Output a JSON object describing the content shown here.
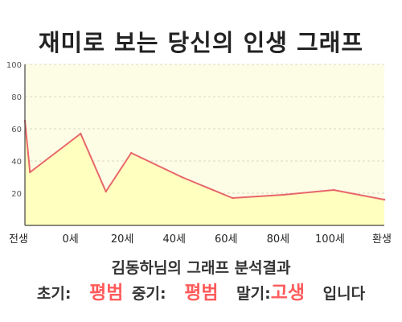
{
  "title": "재미로 보는 당신의 인생 그래프",
  "subtitle": "김동하님의 그래프 분석결과",
  "result": {
    "early_label": "초기:",
    "early_value": "평범",
    "middle_label": "중기:",
    "middle_value": "평범",
    "late_label": "말기:",
    "late_value": "고생",
    "ending": "입니다"
  },
  "colors": {
    "line": "#e8666a",
    "fill": "#ffffbf",
    "plot_bg": "#fdfde6",
    "grid": "#d9d9c4",
    "highlight": "#ff5b5b"
  },
  "chart_data": {
    "type": "area",
    "title": "재미로 보는 당신의 인생 그래프",
    "xlabel": "",
    "ylabel": "",
    "ylim": [
      0,
      100
    ],
    "yticks": [
      20,
      40,
      60,
      80,
      100
    ],
    "y_tick_labels": [
      "20",
      "40",
      "60",
      "80",
      "100"
    ],
    "x_tick_labels": [
      "전생",
      "0세",
      "20세",
      "40세",
      "60세",
      "80세",
      "100세",
      "환생"
    ],
    "grid": true,
    "series": [
      {
        "x": [
          -1,
          0,
          10,
          15,
          20,
          30,
          40,
          50,
          60,
          70
        ],
        "values": [
          65,
          33,
          57,
          21,
          45,
          30,
          17,
          19,
          22,
          16
        ]
      }
    ]
  }
}
